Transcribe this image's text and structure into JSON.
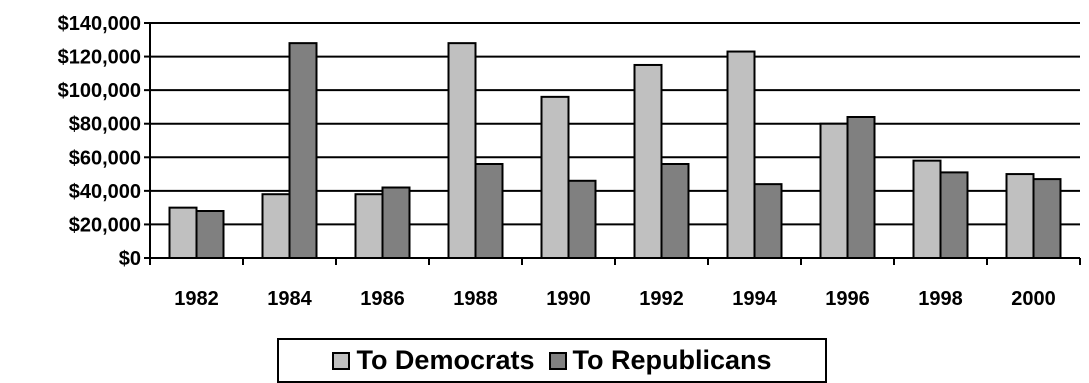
{
  "chart_data": {
    "type": "bar",
    "categories": [
      "1982",
      "1984",
      "1986",
      "1988",
      "1990",
      "1992",
      "1994",
      "1996",
      "1998",
      "2000"
    ],
    "series": [
      {
        "name": "To Democrats",
        "color": "#c0c0c0",
        "values": [
          30000,
          38000,
          38000,
          128000,
          96000,
          115000,
          123000,
          80000,
          58000,
          50000
        ]
      },
      {
        "name": "To Republicans",
        "color": "#808080",
        "values": [
          28000,
          128000,
          42000,
          56000,
          46000,
          56000,
          44000,
          84000,
          51000,
          47000
        ]
      }
    ],
    "ylim": [
      0,
      140000
    ],
    "yticks": [
      "$0",
      "$20,000",
      "$40,000",
      "$60,000",
      "$80,000",
      "$100,000",
      "$120,000",
      "$140,000"
    ],
    "ytick_values": [
      0,
      20000,
      40000,
      60000,
      80000,
      100000,
      120000,
      140000
    ],
    "grid": true,
    "legend_position": "bottom"
  }
}
